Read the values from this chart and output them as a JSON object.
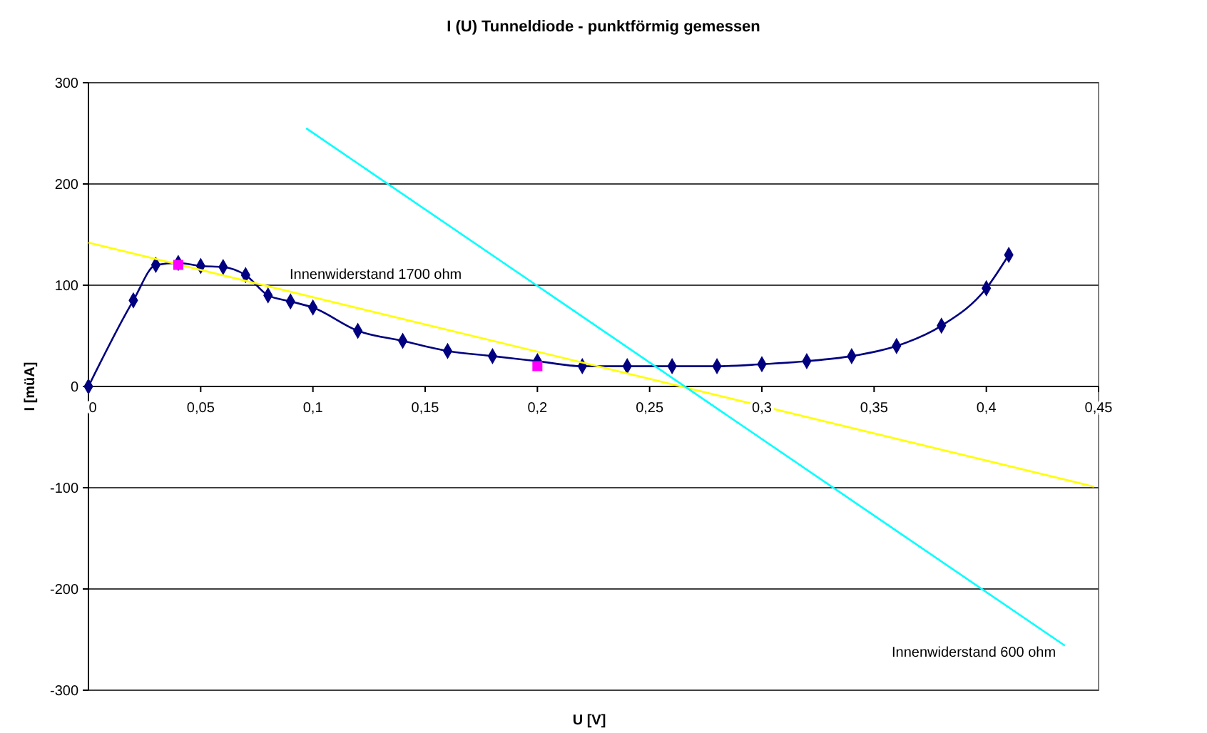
{
  "chart_data": {
    "type": "line",
    "title": "I (U) Tunneldiode - punktförmig gemessen",
    "xlabel": "U [V]",
    "ylabel": "I [müA]",
    "xlim": [
      0,
      0.45
    ],
    "xticks": [
      {
        "value": 0,
        "label": "0"
      },
      {
        "value": 0.05,
        "label": "0,05"
      },
      {
        "value": 0.1,
        "label": "0,1"
      },
      {
        "value": 0.15,
        "label": "0,15"
      },
      {
        "value": 0.2,
        "label": "0,2"
      },
      {
        "value": 0.25,
        "label": "0,25"
      },
      {
        "value": 0.3,
        "label": "0,3"
      },
      {
        "value": 0.35,
        "label": "0,35"
      },
      {
        "value": 0.4,
        "label": "0,4"
      },
      {
        "value": 0.45,
        "label": "0,45"
      }
    ],
    "ylim": [
      -300,
      300
    ],
    "yticks": [
      -300,
      -200,
      -100,
      0,
      100,
      200,
      300
    ],
    "grid": "y",
    "series": [
      {
        "color": "#000080",
        "marker": "diamond",
        "line_style": "solid",
        "x": [
          0,
          0.02,
          0.03,
          0.04,
          0.05,
          0.06,
          0.07,
          0.08,
          0.09,
          0.1,
          0.12,
          0.14,
          0.16,
          0.18,
          0.2,
          0.22,
          0.24,
          0.26,
          0.28,
          0.3,
          0.32,
          0.34,
          0.36,
          0.38,
          0.4,
          0.41
        ],
        "values": [
          0,
          85,
          120,
          122,
          119,
          118,
          110,
          90,
          84,
          78,
          55,
          45,
          35,
          30,
          25,
          20,
          20,
          20,
          20,
          22,
          25,
          30,
          40,
          60,
          97,
          130
        ]
      },
      {
        "color": "#ffff00",
        "marker": "none",
        "line_style": "solid",
        "x": [
          0,
          0.448
        ],
        "values": [
          142,
          -99
        ]
      },
      {
        "color": "#00ffff",
        "marker": "none",
        "line_style": "solid",
        "x": [
          0.097,
          0.435
        ],
        "values": [
          255,
          -256
        ]
      },
      {
        "type": "scatter",
        "color": "#ff00ff",
        "marker": "square",
        "x": [
          0.04,
          0.2
        ],
        "values": [
          120,
          20
        ]
      }
    ],
    "annotations": [
      "Innenwiderstand 1700 ohm",
      "Innenwiderstand 600 ohm"
    ]
  }
}
